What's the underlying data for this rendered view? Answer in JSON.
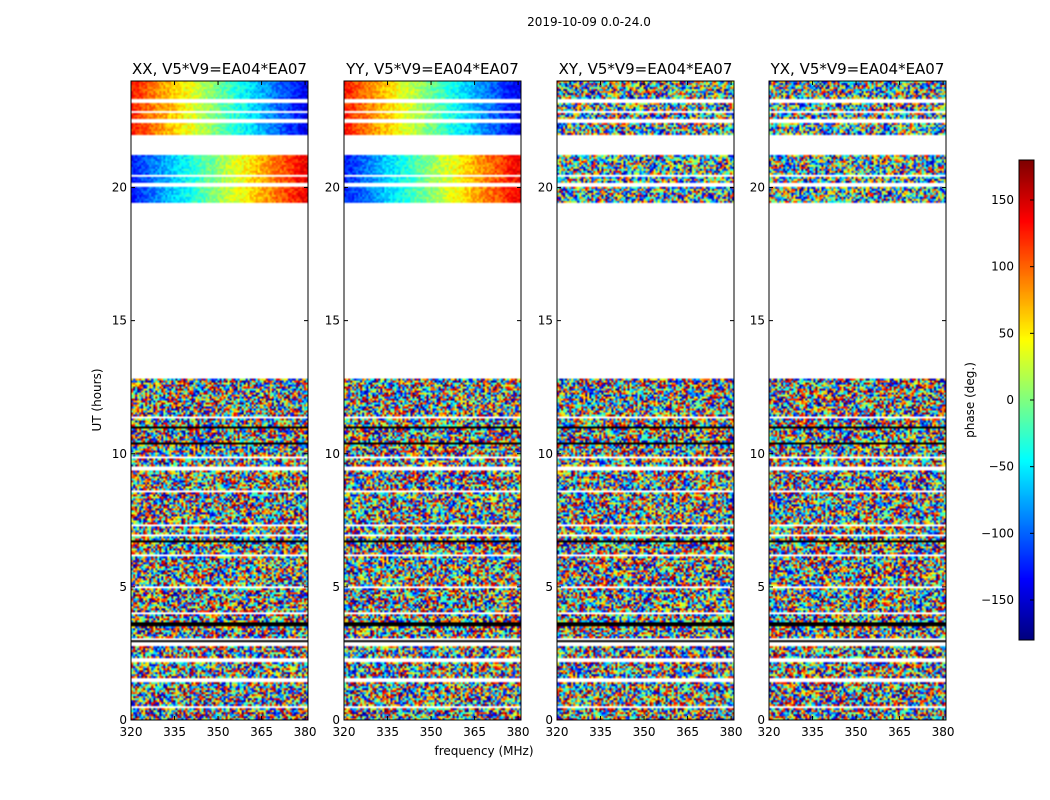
{
  "chart_data": {
    "type": "heatmap",
    "title": "2019-10-09 0.0-24.0",
    "xlabel": "frequency (MHz)",
    "ylabel": "UT (hours)",
    "xlim": [
      320,
      381
    ],
    "ylim": [
      0,
      24
    ],
    "xticks": [
      320,
      335,
      350,
      365,
      380
    ],
    "yticks": [
      0,
      5,
      10,
      15,
      20
    ],
    "colormap": "jet",
    "colorbar": {
      "label": "phase (deg.)",
      "range": [
        -180,
        180
      ],
      "ticks": [
        -150,
        -100,
        -50,
        0,
        50,
        100,
        150
      ],
      "tick_labels": [
        "−150",
        "−100",
        "−50",
        "0",
        "50",
        "100",
        "150"
      ]
    },
    "panels": [
      {
        "title": "XX, V5*V9=EA04*EA07",
        "structure": "strong phase gradient across frequency 19.4-24 h, noise elsewhere"
      },
      {
        "title": "YY, V5*V9=EA04*EA07",
        "structure": "strong phase gradient across frequency 19.4-24 h, noise elsewhere"
      },
      {
        "title": "XY, V5*V9=EA04*EA07",
        "structure": "mostly noise"
      },
      {
        "title": "YX, V5*V9=EA04*EA07",
        "structure": "mostly noise"
      }
    ],
    "data_coverage_hours": [
      [
        0,
        12.8
      ],
      [
        19.4,
        21.2
      ],
      [
        22.0,
        24.0
      ]
    ],
    "blank_rows_hours": [
      0.5,
      1.5,
      2.25,
      2.85,
      3.05,
      4.0,
      5.0,
      6.2,
      6.95,
      7.3,
      8.6,
      9.45,
      9.85,
      11.35,
      20.1,
      20.45,
      22.5,
      22.85,
      23.25
    ],
    "dark_line_hours": [
      3.0,
      3.6,
      6.7,
      10.4,
      11.0
    ]
  }
}
